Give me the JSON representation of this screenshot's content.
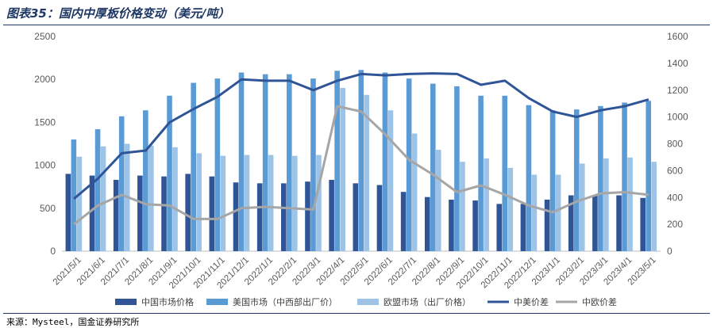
{
  "title": "图表35：国内中厚板价格变动（美元/吨）",
  "source": "来源：Mysteel，国金证券研究所",
  "chart_data": {
    "type": "bar",
    "categories": [
      "2021/5/1",
      "2021/6/1",
      "2021/7/1",
      "2021/8/1",
      "2021/9/1",
      "2021/10/1",
      "2021/11/1",
      "2021/12/1",
      "2022/1/1",
      "2022/2/1",
      "2022/3/1",
      "2022/4/1",
      "2022/5/1",
      "2022/6/1",
      "2022/7/1",
      "2022/8/1",
      "2022/9/1",
      "2022/10/1",
      "2022/11/1",
      "2022/12/1",
      "2023/1/1",
      "2023/2/1",
      "2023/3/1",
      "2023/4/1",
      "2023/5/1"
    ],
    "left_axis": {
      "min": 0,
      "max": 2500,
      "ticks": [
        "0",
        "500",
        "1000",
        "1500",
        "2000",
        "2500"
      ]
    },
    "right_axis": {
      "min": 0,
      "max": 1600,
      "ticks": [
        "0",
        "200",
        "400",
        "600",
        "800",
        "1000",
        "1200",
        "1400",
        "1600"
      ]
    },
    "bar_series": [
      {
        "name": "中国市场价格",
        "color": "#2f5597",
        "axis": "left",
        "values": [
          900,
          880,
          830,
          880,
          870,
          900,
          870,
          800,
          790,
          790,
          810,
          830,
          790,
          770,
          690,
          630,
          600,
          590,
          550,
          550,
          600,
          650,
          650,
          650,
          620
        ]
      },
      {
        "name": "美国市场（中西部出厂价）",
        "color": "#5b9bd5",
        "axis": "left",
        "values": [
          1300,
          1420,
          1570,
          1640,
          1810,
          1960,
          2010,
          2080,
          2060,
          2060,
          2010,
          2100,
          2110,
          2080,
          2010,
          1950,
          1920,
          1810,
          1810,
          1700,
          1640,
          1650,
          1690,
          1730,
          1750
        ]
      },
      {
        "name": "欧盟市场（出厂价格）",
        "color": "#9dc3e6",
        "axis": "left",
        "values": [
          1100,
          1220,
          1250,
          1230,
          1210,
          1140,
          1110,
          1120,
          1120,
          1110,
          1120,
          1900,
          1820,
          1640,
          1370,
          1180,
          1040,
          1080,
          970,
          890,
          890,
          1020,
          1080,
          1090,
          1040
        ]
      }
    ],
    "line_series": [
      {
        "name": "中美价差",
        "color": "#2f5597",
        "axis": "right",
        "values": [
          390,
          540,
          730,
          750,
          960,
          1060,
          1150,
          1280,
          1270,
          1270,
          1200,
          1270,
          1320,
          1310,
          1320,
          1325,
          1320,
          1240,
          1270,
          1140,
          1040,
          1000,
          1050,
          1080,
          1130
        ]
      },
      {
        "name": "中欧价差",
        "color": "#a6a6a6",
        "axis": "right",
        "values": [
          200,
          340,
          420,
          350,
          340,
          240,
          240,
          320,
          330,
          320,
          310,
          1080,
          1040,
          870,
          680,
          570,
          440,
          490,
          420,
          340,
          290,
          370,
          430,
          440,
          420
        ]
      }
    ],
    "legend": [
      "中国市场价格",
      "美国市场（中西部出厂价）",
      "欧盟市场（出厂价格）",
      "中美价差",
      "中欧价差"
    ],
    "legend_position": "bottom",
    "grid": false
  }
}
